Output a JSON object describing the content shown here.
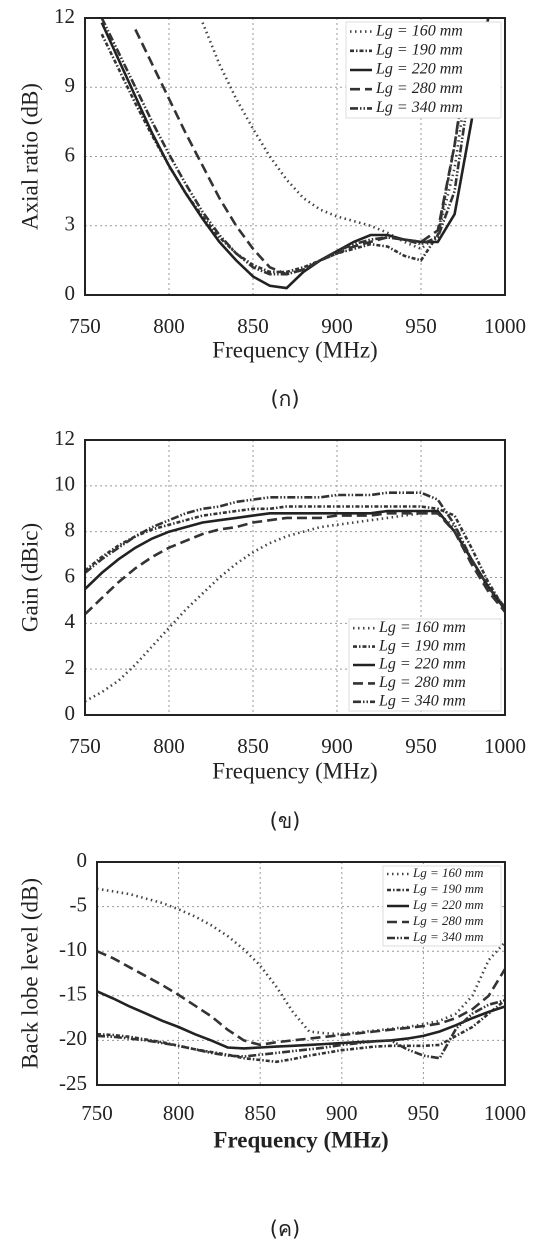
{
  "chart_data": [
    {
      "type": "line",
      "ylabel": "Axial ratio (dB)",
      "xlabel": "Frequency (MHz)",
      "caption": "(ก)",
      "x": [
        750,
        760,
        770,
        780,
        790,
        800,
        810,
        820,
        830,
        840,
        850,
        860,
        870,
        880,
        890,
        900,
        910,
        920,
        930,
        940,
        950,
        960,
        970,
        980,
        990,
        1000
      ],
      "xlim": [
        750,
        1000
      ],
      "xticks": [
        750,
        800,
        850,
        900,
        950,
        1000
      ],
      "ylim": [
        0,
        12
      ],
      "yticks": [
        0,
        3,
        6,
        9,
        12
      ],
      "grid": true,
      "legend": "upper right",
      "series": [
        {
          "name": "Lg = 160 mm",
          "color": "#444",
          "dash": "1.5,3.5",
          "values": [
            null,
            null,
            null,
            null,
            null,
            null,
            null,
            11.8,
            10,
            8.5,
            7.2,
            6.0,
            5.0,
            4.2,
            3.7,
            3.4,
            3.2,
            3.0,
            2.7,
            2.3,
            2.0,
            2.6,
            5.5,
            10.5,
            null,
            null
          ]
        },
        {
          "name": "Lg = 190 mm",
          "color": "#333",
          "dash": "4,2,1.5,2",
          "values": [
            null,
            11.3,
            9.8,
            8.3,
            6.9,
            5.6,
            4.4,
            3.4,
            2.5,
            1.8,
            1.3,
            1.0,
            1.0,
            1.2,
            1.5,
            1.8,
            2.0,
            2.2,
            2.1,
            1.7,
            1.5,
            2.6,
            6.5,
            11,
            null,
            null
          ]
        },
        {
          "name": "Lg = 220 mm",
          "color": "#222",
          "dash": "none",
          "values": [
            null,
            11.8,
            10.2,
            8.6,
            7.0,
            5.6,
            4.4,
            3.3,
            2.3,
            1.5,
            0.8,
            0.4,
            0.3,
            1.0,
            1.5,
            1.9,
            2.3,
            2.6,
            2.6,
            2.4,
            2.3,
            2.3,
            3.5,
            7.5,
            12,
            null
          ]
        },
        {
          "name": "Lg = 280 mm",
          "color": "#333",
          "dash": "10,5",
          "values": [
            null,
            null,
            null,
            11.5,
            10,
            8.5,
            7.0,
            5.6,
            4.2,
            3.0,
            2.0,
            1.2,
            0.9,
            1.1,
            1.5,
            1.8,
            2.1,
            2.3,
            2.5,
            2.4,
            2.3,
            2.8,
            6.5,
            11.5,
            null,
            null
          ]
        },
        {
          "name": "Lg = 340 mm",
          "color": "#333",
          "dash": "8,2,1.5,2,1.5,2",
          "values": [
            null,
            12,
            10.5,
            9,
            7.5,
            6.1,
            4.8,
            3.6,
            2.6,
            1.8,
            1.2,
            0.9,
            0.9,
            1.1,
            1.5,
            1.9,
            2.2,
            2.4,
            2.5,
            2.4,
            2.2,
            2.5,
            4.5,
            9.5,
            12,
            null
          ]
        }
      ]
    },
    {
      "type": "line",
      "ylabel": "Gain (dBic)",
      "xlabel": "Frequency (MHz)",
      "caption": "(ข)",
      "x": [
        750,
        760,
        770,
        780,
        790,
        800,
        810,
        820,
        830,
        840,
        850,
        860,
        870,
        880,
        890,
        900,
        910,
        920,
        930,
        940,
        950,
        960,
        970,
        980,
        990,
        1000
      ],
      "xlim": [
        750,
        1000
      ],
      "xticks": [
        750,
        800,
        850,
        900,
        950,
        1000
      ],
      "ylim": [
        0,
        12
      ],
      "yticks": [
        0,
        2,
        4,
        6,
        8,
        10,
        12
      ],
      "grid": true,
      "legend": "lower right",
      "series": [
        {
          "name": "Lg = 160 mm",
          "color": "#444",
          "dash": "1.5,3.5",
          "values": [
            0.6,
            1.0,
            1.5,
            2.2,
            3.0,
            3.8,
            4.6,
            5.3,
            6.0,
            6.6,
            7.1,
            7.5,
            7.8,
            8.0,
            8.2,
            8.3,
            8.4,
            8.5,
            8.6,
            8.7,
            8.8,
            8.8,
            8.2,
            6.8,
            5.5,
            4.6
          ]
        },
        {
          "name": "Lg = 190 mm",
          "color": "#333",
          "dash": "4,2,1.5,2",
          "values": [
            6.3,
            6.9,
            7.4,
            7.8,
            8.1,
            8.3,
            8.5,
            8.7,
            8.8,
            8.9,
            9.0,
            9.0,
            9.1,
            9.1,
            9.1,
            9.1,
            9.1,
            9.1,
            9.1,
            9.1,
            9.1,
            9.0,
            8.7,
            7.3,
            5.8,
            4.6
          ]
        },
        {
          "name": "Lg = 220 mm",
          "color": "#222",
          "dash": "none",
          "values": [
            5.5,
            6.2,
            6.8,
            7.3,
            7.7,
            8.0,
            8.2,
            8.4,
            8.5,
            8.6,
            8.7,
            8.8,
            8.8,
            8.8,
            8.8,
            8.8,
            8.8,
            8.8,
            8.9,
            8.9,
            8.9,
            8.9,
            8.0,
            6.8,
            5.6,
            4.6
          ]
        },
        {
          "name": "Lg = 280 mm",
          "color": "#333",
          "dash": "10,5",
          "values": [
            4.4,
            5.1,
            5.8,
            6.4,
            6.9,
            7.3,
            7.6,
            7.9,
            8.1,
            8.2,
            8.4,
            8.5,
            8.6,
            8.6,
            8.6,
            8.7,
            8.7,
            8.7,
            8.8,
            8.8,
            8.8,
            8.8,
            8.0,
            6.6,
            5.4,
            4.5
          ]
        },
        {
          "name": "Lg = 340 mm",
          "color": "#333",
          "dash": "8,2,1.5,2,1.5,2",
          "values": [
            6.2,
            6.8,
            7.3,
            7.8,
            8.2,
            8.5,
            8.8,
            9.0,
            9.1,
            9.3,
            9.4,
            9.5,
            9.5,
            9.5,
            9.5,
            9.6,
            9.6,
            9.6,
            9.7,
            9.7,
            9.7,
            9.4,
            8.3,
            6.8,
            5.6,
            4.7
          ]
        }
      ]
    },
    {
      "type": "line",
      "ylabel": "Back lobe level  (dB)",
      "xlabel": "Frequency (MHz)",
      "caption": "(ค)",
      "x": [
        750,
        760,
        770,
        780,
        790,
        800,
        810,
        820,
        830,
        840,
        850,
        860,
        870,
        880,
        890,
        900,
        910,
        920,
        930,
        940,
        950,
        960,
        970,
        980,
        990,
        1000
      ],
      "xlim": [
        750,
        1000
      ],
      "xticks": [
        750,
        800,
        850,
        900,
        950,
        1000
      ],
      "ylim": [
        -25,
        0
      ],
      "yticks": [
        -25,
        -20,
        -15,
        -10,
        -5,
        0
      ],
      "grid": true,
      "legend": "upper right",
      "series": [
        {
          "name": "Lg = 160 mm",
          "color": "#444",
          "dash": "1.5,3.5",
          "values": [
            -3.0,
            -3.3,
            -3.6,
            -4.1,
            -4.6,
            -5.3,
            -6.1,
            -7.1,
            -8.3,
            -9.8,
            -11.6,
            -14.0,
            -16.8,
            -19.0,
            -19.2,
            -19.3,
            -19.1,
            -18.9,
            -18.7,
            -18.5,
            -18.2,
            -17.8,
            -17.0,
            -15.0,
            -11.0,
            -9.0
          ]
        },
        {
          "name": "Lg = 190 mm",
          "color": "#333",
          "dash": "4,2,1.5,2",
          "values": [
            -19.3,
            -19.4,
            -19.6,
            -19.9,
            -20.2,
            -20.6,
            -21.0,
            -21.3,
            -21.6,
            -22.0,
            -22.2,
            -22.4,
            -22.1,
            -21.7,
            -21.4,
            -21.1,
            -20.9,
            -20.7,
            -20.6,
            -20.6,
            -20.6,
            -20.5,
            -19.5,
            -18.5,
            -17.0,
            -15.5
          ]
        },
        {
          "name": "Lg = 220 mm",
          "color": "#222",
          "dash": "none",
          "values": [
            -14.5,
            -15.3,
            -16.2,
            -17.0,
            -17.8,
            -18.5,
            -19.3,
            -20.0,
            -20.8,
            -20.9,
            -20.8,
            -20.7,
            -20.6,
            -20.5,
            -20.4,
            -20.3,
            -20.2,
            -20.1,
            -20.0,
            -19.8,
            -19.5,
            -19.0,
            -18.3,
            -17.5,
            -16.8,
            -16.2
          ]
        },
        {
          "name": "Lg = 280 mm",
          "color": "#333",
          "dash": "10,5",
          "values": [
            -10.0,
            -10.8,
            -11.8,
            -12.8,
            -13.8,
            -14.9,
            -16.1,
            -17.3,
            -18.8,
            -20.0,
            -20.5,
            -20.2,
            -20.0,
            -19.8,
            -19.6,
            -19.4,
            -19.2,
            -19.0,
            -18.8,
            -18.6,
            -18.4,
            -18.1,
            -17.5,
            -16.5,
            -15.0,
            -12.0
          ]
        },
        {
          "name": "Lg = 340 mm",
          "color": "#333",
          "dash": "8,2,1.5,2,1.5,2",
          "values": [
            -19.5,
            -19.6,
            -19.8,
            -20.0,
            -20.3,
            -20.6,
            -21.0,
            -21.4,
            -21.7,
            -21.8,
            -21.6,
            -21.4,
            -21.2,
            -21.0,
            -20.8,
            -20.5,
            -20.3,
            -20.1,
            -20.0,
            -21.0,
            -21.7,
            -22.0,
            -18.7,
            -17.0,
            -16.0,
            -15.5
          ]
        }
      ]
    }
  ]
}
